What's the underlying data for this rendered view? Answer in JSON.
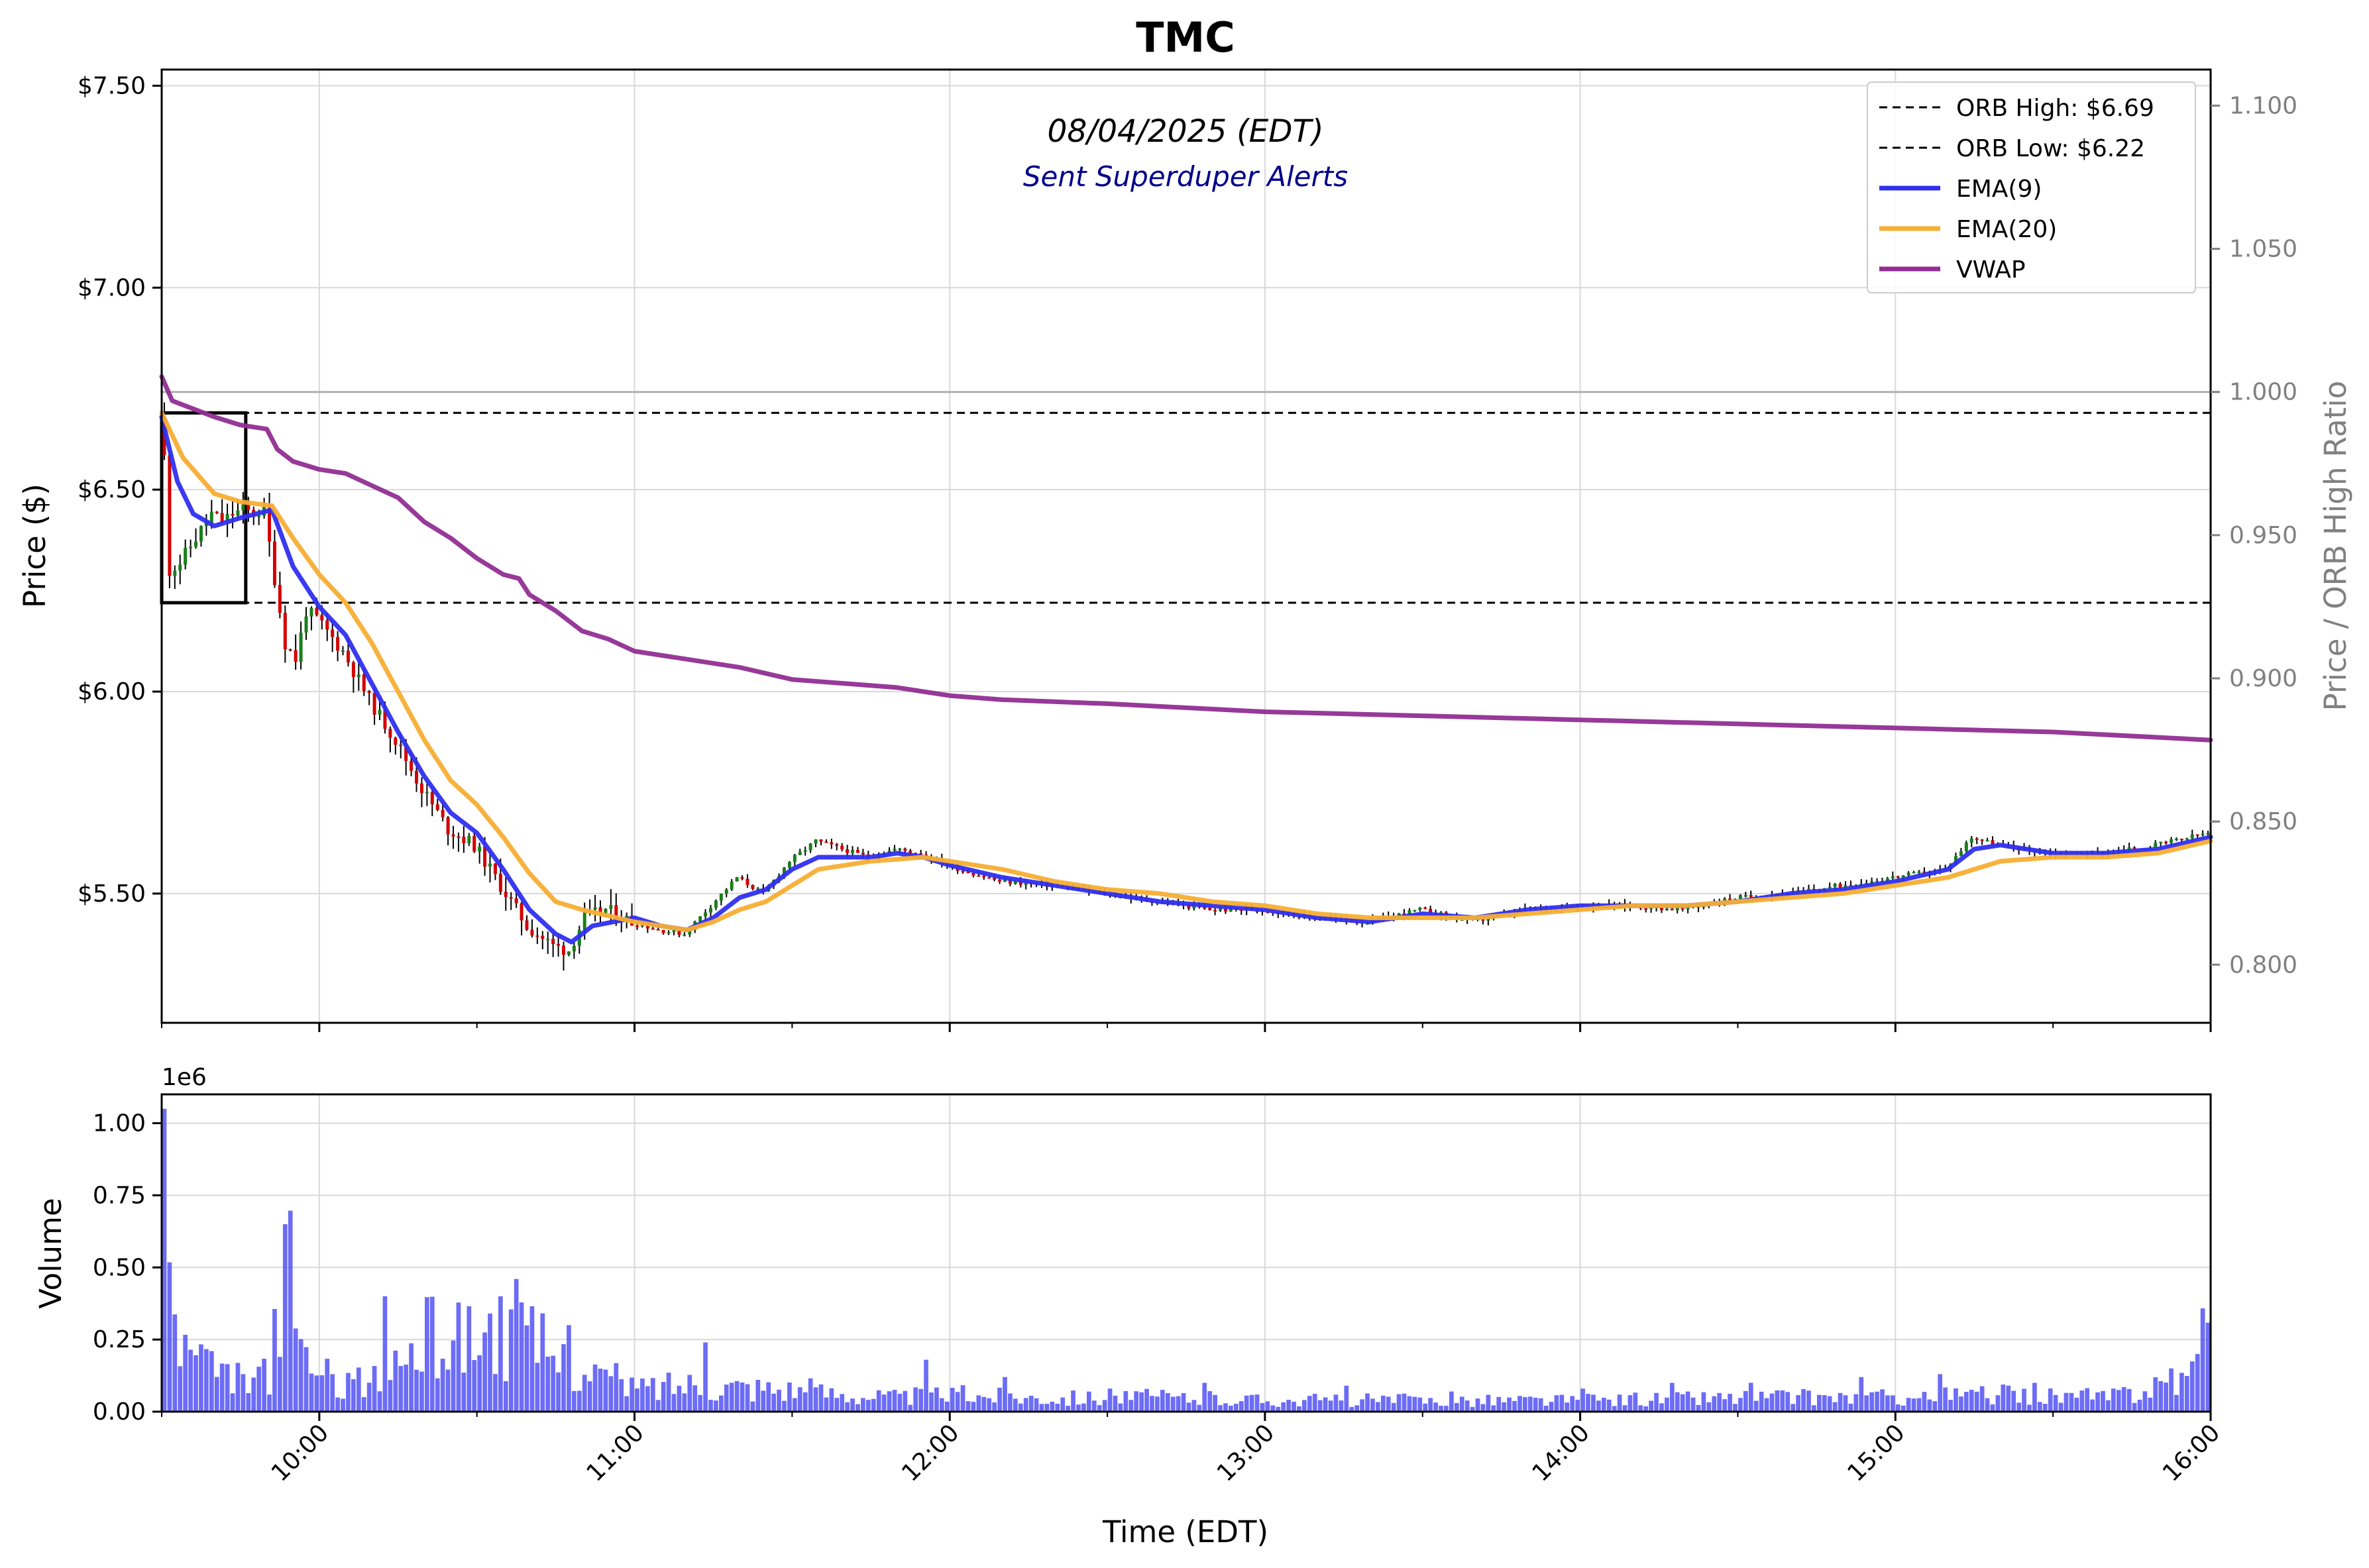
{
  "chart_data": [
    {
      "type": "candlestick",
      "title": "TMC",
      "annotations": [
        "08/04/2025 (EDT)",
        "Sent Superduper Alerts"
      ],
      "ylabel": "Price ($)",
      "y2label": "Price / ORB High Ratio",
      "xlabel": "Time (EDT)",
      "x_range": [
        "09:30",
        "16:00"
      ],
      "ylim": [
        5.18,
        7.54
      ],
      "y2lim": [
        0.7797,
        1.1126
      ],
      "yticks": [
        7.5,
        7.0,
        6.5,
        6.0,
        5.5
      ],
      "ytick_labels": [
        "$7.50",
        "$7.00",
        "$6.50",
        "$6.00",
        "$5.50"
      ],
      "y2ticks": [
        1.1,
        1.05,
        1.0,
        0.95,
        0.9,
        0.85,
        0.8
      ],
      "y2tick_labels": [
        "1.100",
        "1.050",
        "1.000",
        "0.950",
        "0.900",
        "0.850",
        "0.800"
      ],
      "xticks": [
        "10:00",
        "11:00",
        "12:00",
        "13:00",
        "14:00",
        "15:00",
        "16:00"
      ],
      "grid": true,
      "legend": "top-right",
      "orb": {
        "high": 6.69,
        "low": 6.22,
        "start": "09:30",
        "end": "09:46"
      },
      "ratio_reference": 1.0,
      "legend_entries": [
        {
          "label": "ORB High: $6.69",
          "style": "dashed",
          "color": "#000000"
        },
        {
          "label": "ORB Low: $6.22",
          "style": "dashed",
          "color": "#000000"
        },
        {
          "label": "EMA(9)",
          "style": "solid",
          "color": "#2f2ff0"
        },
        {
          "label": "EMA(20)",
          "style": "solid",
          "color": "#f7ae34"
        },
        {
          "label": "VWAP",
          "style": "solid",
          "color": "#912e94"
        }
      ],
      "price_path": [
        [
          "09:30",
          6.68
        ],
        [
          "09:31",
          6.58
        ],
        [
          "09:32",
          6.3
        ],
        [
          "09:34",
          6.32
        ],
        [
          "09:36",
          6.36
        ],
        [
          "09:38",
          6.4
        ],
        [
          "09:40",
          6.44
        ],
        [
          "09:42",
          6.42
        ],
        [
          "09:44",
          6.44
        ],
        [
          "09:46",
          6.45
        ],
        [
          "09:48",
          6.44
        ],
        [
          "09:50",
          6.45
        ],
        [
          "09:52",
          6.28
        ],
        [
          "09:54",
          6.12
        ],
        [
          "09:56",
          6.08
        ],
        [
          "09:58",
          6.2
        ],
        [
          "10:00",
          6.18
        ],
        [
          "10:05",
          6.1
        ],
        [
          "10:10",
          5.98
        ],
        [
          "10:15",
          5.88
        ],
        [
          "10:20",
          5.76
        ],
        [
          "10:25",
          5.66
        ],
        [
          "10:30",
          5.62
        ],
        [
          "10:35",
          5.52
        ],
        [
          "10:40",
          5.42
        ],
        [
          "10:45",
          5.37
        ],
        [
          "10:48",
          5.36
        ],
        [
          "10:51",
          5.44
        ],
        [
          "10:55",
          5.46
        ],
        [
          "11:00",
          5.43
        ],
        [
          "11:05",
          5.41
        ],
        [
          "11:10",
          5.4
        ],
        [
          "11:15",
          5.47
        ],
        [
          "11:20",
          5.54
        ],
        [
          "11:25",
          5.5
        ],
        [
          "11:30",
          5.58
        ],
        [
          "11:35",
          5.63
        ],
        [
          "11:40",
          5.61
        ],
        [
          "11:45",
          5.59
        ],
        [
          "11:50",
          5.61
        ],
        [
          "11:55",
          5.6
        ],
        [
          "12:00",
          5.57
        ],
        [
          "12:10",
          5.53
        ],
        [
          "12:20",
          5.52
        ],
        [
          "12:30",
          5.5
        ],
        [
          "12:40",
          5.48
        ],
        [
          "12:50",
          5.46
        ],
        [
          "13:00",
          5.46
        ],
        [
          "13:10",
          5.44
        ],
        [
          "13:20",
          5.43
        ],
        [
          "13:30",
          5.46
        ],
        [
          "13:40",
          5.43
        ],
        [
          "13:50",
          5.46
        ],
        [
          "14:00",
          5.47
        ],
        [
          "14:10",
          5.47
        ],
        [
          "14:20",
          5.46
        ],
        [
          "14:30",
          5.49
        ],
        [
          "14:40",
          5.5
        ],
        [
          "14:50",
          5.52
        ],
        [
          "15:00",
          5.54
        ],
        [
          "15:10",
          5.56
        ],
        [
          "15:15",
          5.64
        ],
        [
          "15:20",
          5.62
        ],
        [
          "15:30",
          5.6
        ],
        [
          "15:40",
          5.6
        ],
        [
          "15:50",
          5.62
        ],
        [
          "16:00",
          5.65
        ]
      ],
      "series": [
        {
          "name": "EMA(9)",
          "points": [
            [
              "09:30",
              6.68
            ],
            [
              "09:33",
              6.52
            ],
            [
              "09:36",
              6.44
            ],
            [
              "09:40",
              6.41
            ],
            [
              "09:45",
              6.43
            ],
            [
              "09:51",
              6.45
            ],
            [
              "09:55",
              6.31
            ],
            [
              "10:00",
              6.21
            ],
            [
              "10:05",
              6.14
            ],
            [
              "10:10",
              6.02
            ],
            [
              "10:15",
              5.9
            ],
            [
              "10:20",
              5.79
            ],
            [
              "10:25",
              5.7
            ],
            [
              "10:30",
              5.65
            ],
            [
              "10:35",
              5.56
            ],
            [
              "10:40",
              5.46
            ],
            [
              "10:45",
              5.4
            ],
            [
              "10:48",
              5.38
            ],
            [
              "10:52",
              5.42
            ],
            [
              "11:00",
              5.44
            ],
            [
              "11:05",
              5.42
            ],
            [
              "11:10",
              5.41
            ],
            [
              "11:15",
              5.44
            ],
            [
              "11:20",
              5.49
            ],
            [
              "11:25",
              5.51
            ],
            [
              "11:30",
              5.56
            ],
            [
              "11:35",
              5.59
            ],
            [
              "11:45",
              5.59
            ],
            [
              "11:50",
              5.6
            ],
            [
              "11:55",
              5.59
            ],
            [
              "12:00",
              5.57
            ],
            [
              "12:10",
              5.54
            ],
            [
              "12:20",
              5.52
            ],
            [
              "12:30",
              5.5
            ],
            [
              "12:40",
              5.48
            ],
            [
              "12:50",
              5.47
            ],
            [
              "13:00",
              5.46
            ],
            [
              "13:10",
              5.44
            ],
            [
              "13:20",
              5.43
            ],
            [
              "13:30",
              5.45
            ],
            [
              "13:40",
              5.44
            ],
            [
              "13:50",
              5.46
            ],
            [
              "14:00",
              5.47
            ],
            [
              "14:10",
              5.47
            ],
            [
              "14:20",
              5.47
            ],
            [
              "14:30",
              5.48
            ],
            [
              "14:40",
              5.5
            ],
            [
              "14:50",
              5.51
            ],
            [
              "15:00",
              5.53
            ],
            [
              "15:10",
              5.56
            ],
            [
              "15:15",
              5.61
            ],
            [
              "15:20",
              5.62
            ],
            [
              "15:30",
              5.6
            ],
            [
              "15:40",
              5.6
            ],
            [
              "15:50",
              5.61
            ],
            [
              "16:00",
              5.64
            ]
          ]
        },
        {
          "name": "EMA(20)",
          "points": [
            [
              "09:30",
              6.69
            ],
            [
              "09:34",
              6.58
            ],
            [
              "09:40",
              6.49
            ],
            [
              "09:45",
              6.47
            ],
            [
              "09:51",
              6.46
            ],
            [
              "09:55",
              6.38
            ],
            [
              "10:00",
              6.29
            ],
            [
              "10:05",
              6.22
            ],
            [
              "10:10",
              6.12
            ],
            [
              "10:15",
              6.0
            ],
            [
              "10:20",
              5.88
            ],
            [
              "10:25",
              5.78
            ],
            [
              "10:30",
              5.72
            ],
            [
              "10:35",
              5.64
            ],
            [
              "10:40",
              5.55
            ],
            [
              "10:45",
              5.48
            ],
            [
              "10:50",
              5.46
            ],
            [
              "11:00",
              5.43
            ],
            [
              "11:10",
              5.41
            ],
            [
              "11:15",
              5.43
            ],
            [
              "11:20",
              5.46
            ],
            [
              "11:25",
              5.48
            ],
            [
              "11:30",
              5.52
            ],
            [
              "11:35",
              5.56
            ],
            [
              "11:45",
              5.58
            ],
            [
              "11:55",
              5.59
            ],
            [
              "12:00",
              5.58
            ],
            [
              "12:10",
              5.56
            ],
            [
              "12:20",
              5.53
            ],
            [
              "12:30",
              5.51
            ],
            [
              "12:40",
              5.5
            ],
            [
              "12:50",
              5.48
            ],
            [
              "13:00",
              5.47
            ],
            [
              "13:10",
              5.45
            ],
            [
              "13:20",
              5.44
            ],
            [
              "13:30",
              5.44
            ],
            [
              "13:40",
              5.44
            ],
            [
              "13:50",
              5.45
            ],
            [
              "14:00",
              5.46
            ],
            [
              "14:10",
              5.47
            ],
            [
              "14:20",
              5.47
            ],
            [
              "14:30",
              5.48
            ],
            [
              "14:40",
              5.49
            ],
            [
              "14:50",
              5.5
            ],
            [
              "15:00",
              5.52
            ],
            [
              "15:10",
              5.54
            ],
            [
              "15:20",
              5.58
            ],
            [
              "15:30",
              5.59
            ],
            [
              "15:40",
              5.59
            ],
            [
              "15:50",
              5.6
            ],
            [
              "16:00",
              5.63
            ]
          ]
        },
        {
          "name": "VWAP",
          "points": [
            [
              "09:30",
              6.78
            ],
            [
              "09:32",
              6.72
            ],
            [
              "09:36",
              6.7
            ],
            [
              "09:40",
              6.68
            ],
            [
              "09:45",
              6.66
            ],
            [
              "09:50",
              6.65
            ],
            [
              "09:52",
              6.6
            ],
            [
              "09:55",
              6.57
            ],
            [
              "10:00",
              6.55
            ],
            [
              "10:05",
              6.54
            ],
            [
              "10:10",
              6.51
            ],
            [
              "10:15",
              6.48
            ],
            [
              "10:20",
              6.42
            ],
            [
              "10:25",
              6.38
            ],
            [
              "10:30",
              6.33
            ],
            [
              "10:35",
              6.29
            ],
            [
              "10:38",
              6.28
            ],
            [
              "10:40",
              6.24
            ],
            [
              "10:45",
              6.2
            ],
            [
              "10:50",
              6.15
            ],
            [
              "10:55",
              6.13
            ],
            [
              "11:00",
              6.1
            ],
            [
              "11:10",
              6.08
            ],
            [
              "11:20",
              6.06
            ],
            [
              "11:30",
              6.03
            ],
            [
              "11:40",
              6.02
            ],
            [
              "11:50",
              6.01
            ],
            [
              "12:00",
              5.99
            ],
            [
              "12:10",
              5.98
            ],
            [
              "12:30",
              5.97
            ],
            [
              "13:00",
              5.95
            ],
            [
              "13:30",
              5.94
            ],
            [
              "14:00",
              5.93
            ],
            [
              "14:30",
              5.92
            ],
            [
              "15:00",
              5.91
            ],
            [
              "15:30",
              5.9
            ],
            [
              "16:00",
              5.88
            ]
          ]
        }
      ]
    },
    {
      "type": "bar",
      "ylabel": "Volume",
      "scale_label": "1e6",
      "ylim": [
        0,
        1.1
      ],
      "yticks": [
        0,
        0.25,
        0.5,
        0.75,
        1.0
      ],
      "ytick_labels": [
        "0.00",
        "0.25",
        "0.50",
        "0.75",
        "1.00"
      ],
      "xticks": [
        "10:00",
        "11:00",
        "12:00",
        "13:00",
        "14:00",
        "15:00",
        "16:00"
      ],
      "bar_color": "#5252f5",
      "volume_profile": [
        [
          "09:30",
          1.05
        ],
        [
          "09:31",
          0.39
        ],
        [
          "09:33",
          0.22
        ],
        [
          "09:36",
          0.18
        ],
        [
          "09:40",
          0.12
        ],
        [
          "09:45",
          0.11
        ],
        [
          "09:50",
          0.12
        ],
        [
          "09:53",
          0.65
        ],
        [
          "09:55",
          0.23
        ],
        [
          "10:00",
          0.12
        ],
        [
          "10:10",
          0.1
        ],
        [
          "10:20",
          0.25
        ],
        [
          "10:30",
          0.27
        ],
        [
          "10:40",
          0.24
        ],
        [
          "10:45",
          0.18
        ],
        [
          "10:50",
          0.15
        ],
        [
          "11:00",
          0.08
        ],
        [
          "11:10",
          0.1
        ],
        [
          "11:20",
          0.09
        ],
        [
          "11:30",
          0.08
        ],
        [
          "11:40",
          0.06
        ],
        [
          "11:50",
          0.05
        ],
        [
          "12:00",
          0.06
        ],
        [
          "12:20",
          0.05
        ],
        [
          "12:40",
          0.05
        ],
        [
          "13:00",
          0.04
        ],
        [
          "13:30",
          0.04
        ],
        [
          "14:00",
          0.04
        ],
        [
          "14:30",
          0.05
        ],
        [
          "15:00",
          0.05
        ],
        [
          "15:20",
          0.06
        ],
        [
          "15:40",
          0.05
        ],
        [
          "15:55",
          0.12
        ],
        [
          "16:00",
          0.3
        ]
      ],
      "volume_spikes": [
        [
          "09:30",
          1.05
        ],
        [
          "09:53",
          0.65
        ],
        [
          "10:12",
          0.4
        ],
        [
          "10:34",
          0.4
        ],
        [
          "10:37",
          0.46
        ],
        [
          "10:47",
          0.3
        ],
        [
          "11:13",
          0.24
        ],
        [
          "11:55",
          0.18
        ],
        [
          "12:10",
          0.12
        ],
        [
          "12:30",
          0.08
        ],
        [
          "12:48",
          0.1
        ],
        [
          "13:15",
          0.09
        ],
        [
          "13:35",
          0.07
        ],
        [
          "14:00",
          0.08
        ],
        [
          "14:17",
          0.1
        ],
        [
          "14:32",
          0.1
        ],
        [
          "14:53",
          0.12
        ],
        [
          "15:08",
          0.13
        ],
        [
          "15:26",
          0.1
        ],
        [
          "15:52",
          0.15
        ],
        [
          "15:57",
          0.2
        ]
      ]
    }
  ]
}
